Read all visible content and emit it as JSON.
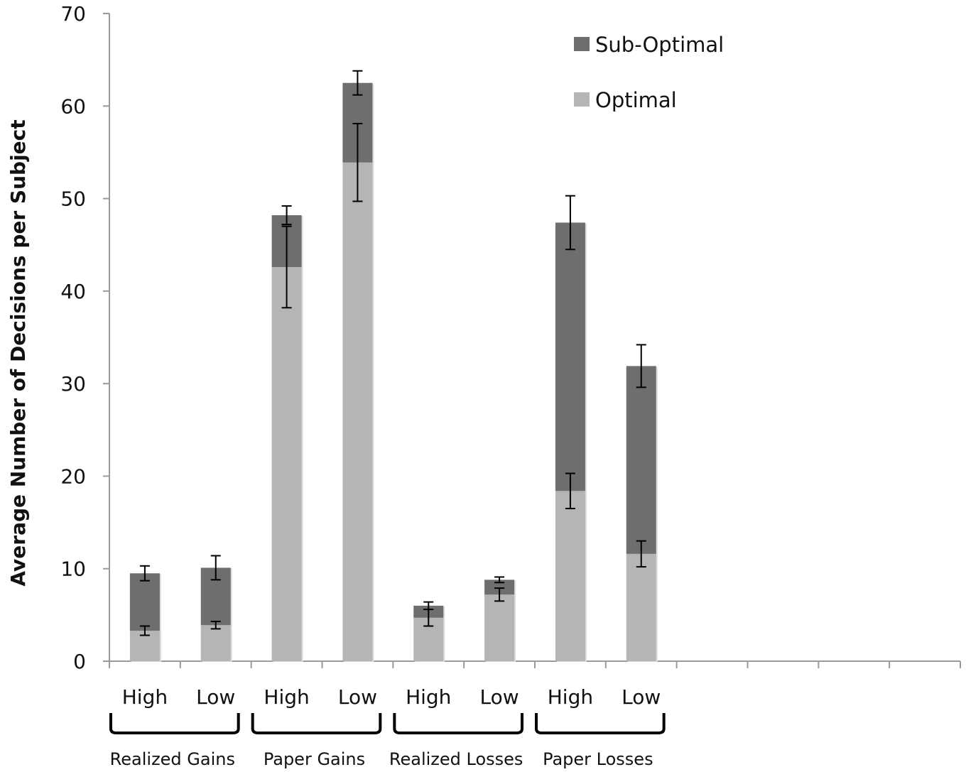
{
  "chart_data": {
    "type": "bar",
    "stacked": true,
    "ylabel": "Average Number of Decisions per Subject",
    "xlabel": "",
    "ylim": [
      0,
      70
    ],
    "yticks": [
      0,
      10,
      20,
      30,
      40,
      50,
      60,
      70
    ],
    "categories": [
      "High",
      "Low",
      "High",
      "Low",
      "High",
      "Low",
      "High",
      "Low"
    ],
    "groups": [
      {
        "label": "Realized Gains",
        "members": [
          0,
          1
        ]
      },
      {
        "label": "Paper Gains",
        "members": [
          2,
          3
        ]
      },
      {
        "label": "Realized Losses",
        "members": [
          4,
          5
        ]
      },
      {
        "label": "Paper Losses",
        "members": [
          6,
          7
        ]
      }
    ],
    "slots": 12,
    "series": [
      {
        "name": "Optimal",
        "color": "#b5b5b5",
        "values": [
          3.3,
          3.9,
          42.6,
          53.9,
          4.7,
          7.2,
          18.4,
          11.6
        ],
        "error": [
          0.5,
          0.4,
          4.4,
          4.2,
          0.9,
          0.7,
          1.9,
          1.4
        ]
      },
      {
        "name": "Sub-Optimal",
        "color": "#6e6e6e",
        "values": [
          6.2,
          6.2,
          5.6,
          8.6,
          1.3,
          1.6,
          29.0,
          20.3
        ],
        "totals": [
          9.5,
          10.1,
          48.2,
          62.5,
          6.0,
          8.8,
          47.4,
          31.9
        ],
        "error": [
          0.8,
          1.3,
          1.0,
          1.3,
          0.4,
          0.3,
          2.9,
          2.3
        ]
      }
    ],
    "legend": {
      "placement": "top-right",
      "items": [
        {
          "label": "Sub-Optimal",
          "color": "#6e6e6e"
        },
        {
          "label": "Optimal",
          "color": "#b5b5b5"
        }
      ]
    },
    "grid": false
  }
}
